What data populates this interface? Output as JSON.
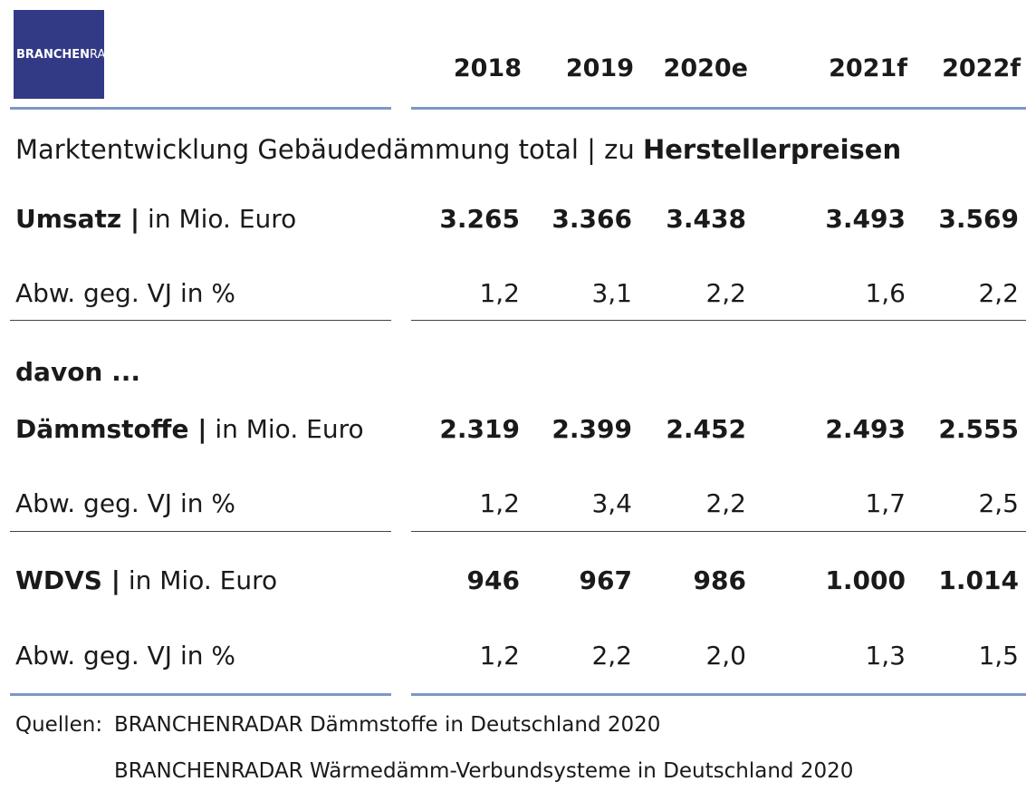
{
  "logo": {
    "part1": "BRANCHEN",
    "part2": "RADAR",
    "color": "#323a86"
  },
  "accent_line_color": "#7d98c6",
  "chart_data": {
    "type": "table",
    "title": "Marktentwicklung Gebäudedämmung total | zu ",
    "title_bold": "Herstellerpreisen",
    "columns": [
      "2018",
      "2019",
      "2020e",
      "2021f",
      "2022f"
    ],
    "rows": [
      {
        "label_bold": "Umsatz |",
        "label": " in Mio. Euro",
        "values": [
          "3.265",
          "3.366",
          "3.438",
          "3.493",
          "3.569"
        ],
        "bold": true
      },
      {
        "label_bold": "",
        "label": "Abw. geg. VJ in %",
        "values": [
          "1,2",
          "3,1",
          "2,2",
          "1,6",
          "2,2"
        ],
        "bold": false
      },
      {
        "label_bold": "davon ...",
        "label": "",
        "values": [],
        "bold": true
      },
      {
        "label_bold": "Dämmstoffe |",
        "label": " in Mio. Euro",
        "values": [
          "2.319",
          "2.399",
          "2.452",
          "2.493",
          "2.555"
        ],
        "bold": true
      },
      {
        "label_bold": "",
        "label": "Abw. geg. VJ in %",
        "values": [
          "1,2",
          "3,4",
          "2,2",
          "1,7",
          "2,5"
        ],
        "bold": false
      },
      {
        "label_bold": "WDVS |",
        "label": " in Mio. Euro",
        "values": [
          "946",
          "967",
          "986",
          "1.000",
          "1.014"
        ],
        "bold": true
      },
      {
        "label_bold": "",
        "label": "Abw. geg. VJ in %",
        "values": [
          "1,2",
          "2,2",
          "2,0",
          "1,3",
          "1,5"
        ],
        "bold": false
      }
    ]
  },
  "sources": {
    "label": "Quellen:",
    "line1": "BRANCHENRADAR Dämmstoffe in Deutschland 2020",
    "line2": "BRANCHENRADAR Wärmedämm-Verbundsysteme in Deutschland 2020"
  }
}
